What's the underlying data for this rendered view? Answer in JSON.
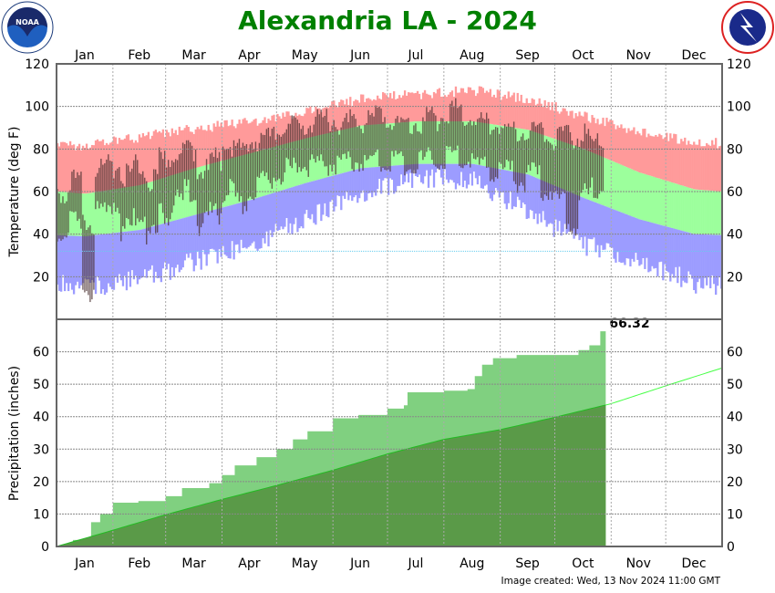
{
  "title": "Alexandria LA - 2024",
  "footer": "Image created: Wed, 13 Nov 2024 11:00 GMT",
  "logos": {
    "left": "NOAA",
    "right": "NATIONAL WEATHER SERVICE"
  },
  "colors": {
    "title": "#008000",
    "record_high": "#ff9a9a",
    "normal_range": "#9cff9c",
    "record_low": "#9c9cff",
    "observed_temp": "#4a3030",
    "observed_precip": "#80d080",
    "normal_precip": "#5a9a48",
    "normal_precip_line": "#22bb22",
    "normal_precip_projection": "#44ff44",
    "freezing_line": "#66ccee"
  },
  "chart_data": [
    {
      "type": "bar",
      "panel": "temperature",
      "ylabel": "Temperature (deg F)",
      "ylim": [
        0,
        120
      ],
      "yticks": [
        20,
        40,
        60,
        80,
        100,
        120
      ],
      "months": [
        "Jan",
        "Feb",
        "Mar",
        "Apr",
        "May",
        "Jun",
        "Jul",
        "Aug",
        "Sep",
        "Oct",
        "Nov",
        "Dec"
      ],
      "grid": true,
      "freezing_line": 32,
      "monthly_normal_high": [
        59,
        63,
        71,
        78,
        85,
        91,
        93,
        93,
        89,
        80,
        69,
        61
      ],
      "monthly_normal_low": [
        39,
        42,
        49,
        56,
        64,
        71,
        73,
        73,
        68,
        57,
        47,
        40
      ],
      "monthly_record_high": [
        82,
        86,
        90,
        93,
        98,
        104,
        106,
        108,
        104,
        96,
        88,
        84
      ],
      "monthly_record_low": [
        10,
        14,
        22,
        30,
        42,
        54,
        62,
        60,
        46,
        30,
        22,
        12
      ],
      "observed_weekly_high_low": [
        [
          60,
          40
        ],
        [
          66,
          45
        ],
        [
          45,
          14
        ],
        [
          70,
          50
        ],
        [
          72,
          55
        ],
        [
          68,
          42
        ],
        [
          72,
          50
        ],
        [
          65,
          40
        ],
        [
          75,
          50
        ],
        [
          78,
          55
        ],
        [
          80,
          60
        ],
        [
          70,
          45
        ],
        [
          75,
          50
        ],
        [
          82,
          60
        ],
        [
          80,
          55
        ],
        [
          84,
          62
        ],
        [
          85,
          65
        ],
        [
          88,
          68
        ],
        [
          90,
          70
        ],
        [
          92,
          72
        ],
        [
          93,
          72
        ],
        [
          94,
          73
        ],
        [
          92,
          74
        ],
        [
          95,
          75
        ],
        [
          93,
          74
        ],
        [
          95,
          75
        ],
        [
          92,
          74
        ],
        [
          90,
          73
        ],
        [
          93,
          74
        ],
        [
          94,
          75
        ],
        [
          96,
          76
        ],
        [
          98,
          76
        ],
        [
          96,
          75
        ],
        [
          92,
          72
        ],
        [
          92,
          70
        ],
        [
          90,
          70
        ],
        [
          88,
          65
        ],
        [
          90,
          68
        ],
        [
          88,
          60
        ],
        [
          85,
          55
        ],
        [
          86,
          45
        ],
        [
          86,
          58
        ],
        [
          82,
          62
        ]
      ]
    },
    {
      "type": "area",
      "panel": "precipitation",
      "ylabel": "Precipitation (inches)",
      "ylim": [
        0,
        70
      ],
      "yticks": [
        0,
        10,
        20,
        30,
        40,
        50,
        60
      ],
      "grid": true,
      "total_label": "66.32",
      "observed_cumulative": [
        [
          "Jan 1",
          0
        ],
        [
          "Jan 10",
          2
        ],
        [
          "Jan 20",
          7.5
        ],
        [
          "Jan 25",
          10
        ],
        [
          "Feb 1",
          13.5
        ],
        [
          "Feb 15",
          14
        ],
        [
          "Mar 1",
          15.5
        ],
        [
          "Mar 10",
          18
        ],
        [
          "Mar 25",
          19.5
        ],
        [
          "Apr 1",
          22
        ],
        [
          "Apr 8",
          25
        ],
        [
          "Apr 20",
          27.5
        ],
        [
          "May 1",
          30
        ],
        [
          "May 10",
          33
        ],
        [
          "May 18",
          35.5
        ],
        [
          "Jun 1",
          39.5
        ],
        [
          "Jun 15",
          40.5
        ],
        [
          "Jul 1",
          42.5
        ],
        [
          "Jul 10",
          43.5
        ],
        [
          "Jul 12",
          47.5
        ],
        [
          "Aug 1",
          48
        ],
        [
          "Aug 14",
          48.5
        ],
        [
          "Aug 18",
          52.5
        ],
        [
          "Aug 22",
          56
        ],
        [
          "Aug 28",
          58
        ],
        [
          "Sep 10",
          59
        ],
        [
          "Oct 14",
          60.5
        ],
        [
          "Oct 20",
          62
        ],
        [
          "Oct 26",
          66.32
        ],
        [
          "Oct 29",
          66.32
        ]
      ],
      "normal_cumulative_month_end": [
        5,
        9.8,
        14.5,
        18.8,
        23.5,
        28.5,
        33,
        36,
        39.8,
        44,
        49.5,
        55
      ]
    }
  ]
}
